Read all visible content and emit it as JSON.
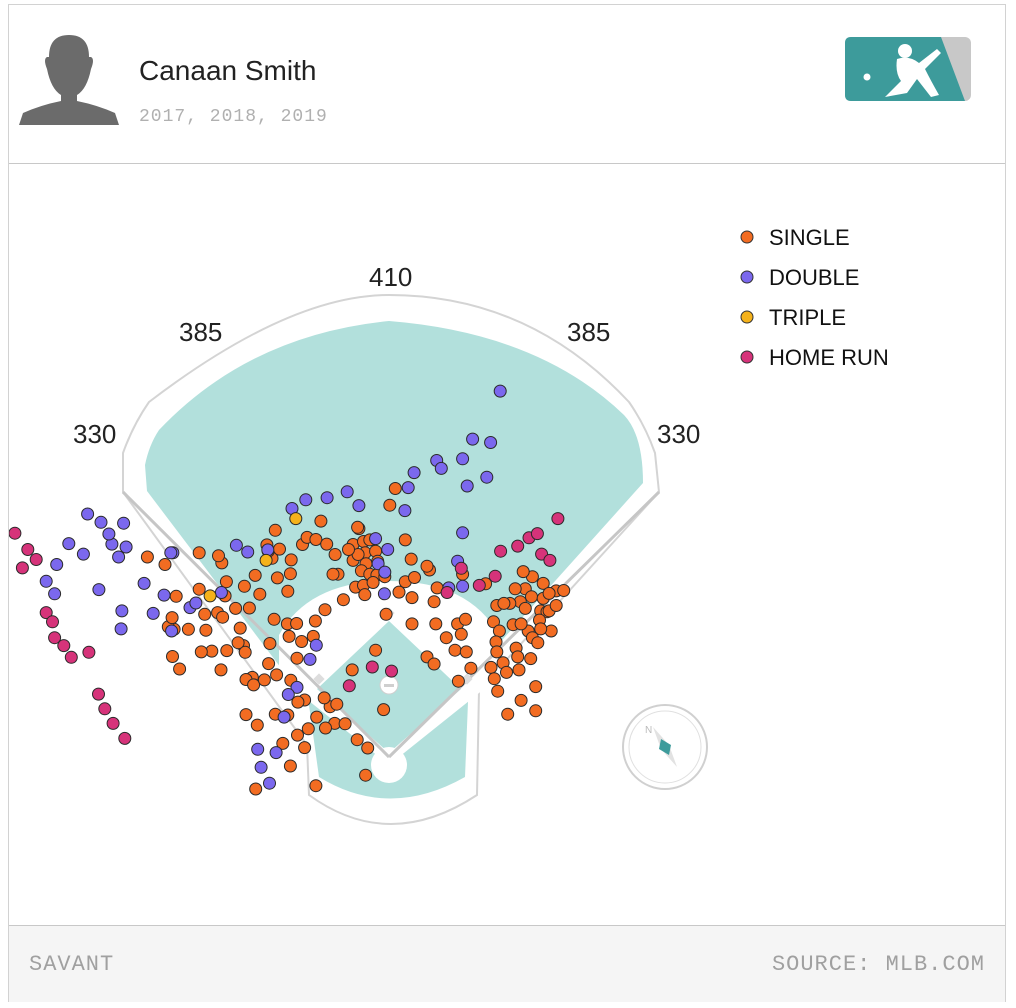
{
  "header": {
    "player_name": "Canaan Smith",
    "seasons": "2017, 2018, 2019",
    "avatar_icon": "player-silhouette-icon",
    "logo_icon": "mlb-logo-icon"
  },
  "footer": {
    "left_text": "SAVANT",
    "right_text": "SOURCE: MLB.COM"
  },
  "colors": {
    "single": "#f26c22",
    "double": "#7b68ee",
    "triple": "#f5b21b",
    "home_run": "#d6337a",
    "grass": "#b2e0dc",
    "logo_teal": "#3d9b9b",
    "logo_grey": "#c8c8c8"
  },
  "chart_data": {
    "type": "scatter",
    "title": "",
    "distance_labels": [
      "330",
      "385",
      "410",
      "385",
      "330"
    ],
    "legend": [
      {
        "key": "single",
        "label": "SINGLE"
      },
      {
        "key": "double",
        "label": "DOUBLE"
      },
      {
        "key": "triple",
        "label": "TRIPLE"
      },
      {
        "key": "home_run",
        "label": "HOME RUN"
      }
    ],
    "legend_position": "top-right",
    "coordinate_system": "hc_x / hc_y hit coordinates (Statcast style, home plate at 125,208)",
    "series": {
      "single": [
        [
          116.4,
          156.2
        ],
        [
          116.4,
          160.0
        ],
        [
          117.8,
          152.4
        ],
        [
          118.9,
          155.5
        ],
        [
          119.3,
          158.2
        ],
        [
          120.4,
          155.1
        ],
        [
          119.5,
          160.8
        ],
        [
          121.8,
          157.8
        ],
        [
          122.3,
          160.2
        ],
        [
          118.4,
          162.5
        ],
        [
          120.4,
          163.3
        ],
        [
          122.1,
          163.5
        ],
        [
          117.0,
          166.4
        ],
        [
          118.9,
          166.0
        ],
        [
          121.2,
          165.3
        ],
        [
          117.6,
          158.6
        ],
        [
          119.2,
          168.2
        ],
        [
          124.0,
          163.9
        ],
        [
          128.9,
          165.1
        ],
        [
          127.4,
          167.6
        ],
        [
          134.7,
          162.3
        ],
        [
          112.1,
          158.6
        ],
        [
          128.9,
          155.1
        ],
        [
          130.3,
          159.7
        ],
        [
          131.1,
          164.1
        ],
        [
          130.5,
          168.9
        ],
        [
          134.1,
          161.4
        ],
        [
          136.5,
          166.6
        ],
        [
          135.8,
          169.9
        ],
        [
          136.2,
          175.2
        ],
        [
          124.3,
          172.9
        ],
        [
          121.8,
          181.5
        ],
        [
          116.2,
          186.2
        ],
        [
          130.5,
          175.2
        ],
        [
          141.4,
          175.2
        ],
        [
          138.7,
          178.5
        ],
        [
          140.8,
          181.5
        ],
        [
          134.1,
          183.1
        ],
        [
          135.8,
          184.8
        ],
        [
          142.6,
          163.3
        ],
        [
          143.3,
          174.1
        ],
        [
          142.3,
          177.7
        ],
        [
          143.5,
          181.9
        ],
        [
          144.6,
          185.8
        ],
        [
          141.6,
          188.9
        ],
        [
          150.8,
          170.8
        ],
        [
          150.0,
          174.7
        ],
        [
          151.4,
          176.9
        ],
        [
          150.6,
          179.5
        ],
        [
          150.8,
          181.9
        ],
        [
          152.3,
          184.5
        ],
        [
          149.4,
          185.6
        ],
        [
          150.2,
          188.3
        ],
        [
          153.1,
          186.8
        ],
        [
          154.7,
          175.4
        ],
        [
          155.4,
          181.0
        ],
        [
          156.4,
          169.9
        ],
        [
          157.6,
          166.8
        ],
        [
          157.6,
          171.5
        ],
        [
          153.9,
          170.3
        ],
        [
          158.3,
          176.9
        ],
        [
          156.6,
          175.2
        ],
        [
          159.3,
          178.5
        ],
        [
          161.3,
          172.1
        ],
        [
          159.1,
          168.7
        ],
        [
          161.9,
          165.5
        ],
        [
          162.8,
          172.3
        ],
        [
          155.8,
          183.1
        ],
        [
          158.9,
          183.5
        ],
        [
          160.6,
          179.7
        ],
        [
          156.1,
          186.2
        ],
        [
          160.1,
          190.2
        ],
        [
          156.6,
          193.5
        ],
        [
          160.1,
          196.0
        ],
        [
          153.4,
          196.8
        ],
        [
          161.9,
          169.1
        ],
        [
          155.2,
          166.8
        ],
        [
          152.5,
          170.3
        ],
        [
          159.3,
          163.9
        ],
        [
          157.1,
          162.7
        ],
        [
          151.0,
          191.3
        ],
        [
          161.0,
          174.3
        ],
        [
          163.3,
          172.1
        ],
        [
          163.8,
          176.9
        ],
        [
          161.3,
          176.4
        ],
        [
          165.0,
          167.3
        ],
        [
          166.8,
          167.2
        ],
        [
          163.3,
          167.9
        ],
        [
          165.0,
          170.8
        ],
        [
          148.1,
          165.6
        ],
        [
          110.9,
          195.0
        ],
        [
          112.5,
          194.4
        ],
        [
          112.0,
          199.0
        ],
        [
          114.5,
          199.1
        ],
        [
          109.8,
          200.1
        ],
        [
          105.7,
          200.3
        ],
        [
          104.8,
          204.8
        ],
        [
          103.1,
          201.8
        ],
        [
          99.6,
          203.8
        ],
        [
          107.7,
          197.5
        ],
        [
          101.4,
          209.2
        ],
        [
          123.7,
          195.7
        ],
        [
          119.4,
          211.4
        ],
        [
          117.4,
          202.9
        ],
        [
          107.5,
          213.9
        ],
        [
          119.9,
          204.9
        ],
        [
          109.5,
          192.9
        ],
        [
          93.1,
          214.7
        ],
        [
          84.0,
          172.5
        ],
        [
          90.2,
          180.4
        ],
        [
          92.3,
          188.0
        ],
        [
          90.8,
          188.5
        ],
        [
          86.2,
          181.6
        ],
        [
          85.2,
          173.6
        ],
        [
          84.8,
          186.2
        ],
        [
          82.6,
          181.7
        ],
        [
          92.6,
          189.8
        ],
        [
          90.6,
          182.0
        ],
        [
          88.9,
          179.7
        ],
        [
          89.4,
          176.2
        ],
        [
          85.0,
          160.6
        ],
        [
          86.1,
          165.1
        ],
        [
          90.4,
          166.2
        ],
        [
          91.6,
          171.4
        ],
        [
          93.0,
          163.6
        ],
        [
          94.1,
          168.1
        ],
        [
          97.0,
          159.5
        ],
        [
          96.1,
          157.8
        ],
        [
          98.3,
          164.2
        ],
        [
          97.8,
          152.8
        ],
        [
          98.8,
          157.3
        ],
        [
          95.8,
          156.3
        ],
        [
          101.6,
          159.9
        ],
        [
          104.3,
          156.2
        ],
        [
          105.4,
          154.5
        ],
        [
          108.7,
          150.6
        ],
        [
          107.5,
          155.0
        ],
        [
          110.1,
          156.1
        ],
        [
          112.8,
          163.3
        ],
        [
          111.6,
          163.3
        ],
        [
          114.1,
          169.4
        ],
        [
          109.7,
          171.8
        ],
        [
          117.5,
          152.1
        ],
        [
          115.3,
          157.4
        ],
        [
          97.5,
          174.1
        ],
        [
          96.5,
          179.9
        ],
        [
          101.1,
          178.2
        ],
        [
          96.2,
          184.7
        ],
        [
          100.7,
          175.2
        ],
        [
          104.1,
          179.4
        ],
        [
          106.9,
          178.2
        ],
        [
          107.4,
          174.5
        ],
        [
          102.9,
          175.1
        ],
        [
          103.0,
          183.4
        ],
        [
          104.8,
          193.4
        ],
        [
          103.2,
          193.9
        ],
        [
          100.8,
          197.0
        ],
        [
          97.8,
          196.8
        ],
        [
          93.5,
          199.4
        ],
        [
          90.8,
          196.9
        ],
        [
          98.1,
          187.4
        ],
        [
          101.5,
          188.7
        ],
        [
          95.2,
          188.6
        ],
        [
          101.4,
          163.2
        ],
        [
          100.8,
          167.4
        ],
        [
          79.6,
          158.2
        ],
        [
          80.9,
          172.9
        ],
        [
          71.4,
          161.0
        ],
        [
          73.6,
          176.5
        ],
        [
          77.0,
          176.5
        ],
        [
          81.2,
          176.7
        ],
        [
          80.1,
          181.9
        ],
        [
          73.2,
          183.0
        ],
        [
          72.2,
          175.9
        ],
        [
          74.9,
          186.0
        ],
        [
          67.2,
          159.2
        ],
        [
          74.1,
          168.6
        ],
        [
          73.1,
          173.7
        ],
        [
          79.6,
          166.9
        ],
        [
          85.8,
          168.5
        ],
        [
          88.3,
          171.5
        ],
        [
          84.2,
          158.9
        ],
        [
          126.5,
          142.8
        ],
        [
          125.2,
          146.8
        ]
      ],
      "double": [
        [
          43.0,
          165.0
        ],
        [
          45.0,
          168.0
        ],
        [
          45.5,
          161.0
        ],
        [
          48.4,
          156.0
        ],
        [
          51.9,
          158.5
        ],
        [
          55.6,
          167.0
        ],
        [
          58.7,
          156.1
        ],
        [
          61.1,
          172.1
        ],
        [
          61.5,
          151.1
        ],
        [
          66.4,
          165.5
        ],
        [
          68.6,
          172.7
        ],
        [
          71.2,
          168.3
        ],
        [
          73.3,
          158.2
        ],
        [
          73.0,
          176.9
        ],
        [
          77.4,
          171.3
        ],
        [
          84.9,
          167.7
        ],
        [
          88.5,
          156.4
        ],
        [
          91.2,
          158.0
        ],
        [
          96.0,
          157.5
        ],
        [
          101.8,
          147.6
        ],
        [
          105.1,
          145.5
        ],
        [
          110.2,
          145.0
        ],
        [
          115.0,
          143.6
        ],
        [
          117.8,
          146.9
        ],
        [
          121.8,
          154.8
        ],
        [
          122.4,
          160.8
        ],
        [
          124.0,
          162.8
        ],
        [
          124.7,
          157.4
        ],
        [
          123.9,
          168.0
        ],
        [
          148.4,
          140.1
        ],
        [
          143.7,
          142.2
        ],
        [
          136.4,
          136.1
        ],
        [
          137.5,
          138.0
        ],
        [
          142.6,
          135.7
        ],
        [
          145.0,
          131.0
        ],
        [
          149.3,
          131.8
        ],
        [
          151.6,
          119.5
        ],
        [
          142.6,
          153.4
        ],
        [
          141.4,
          160.2
        ],
        [
          139.3,
          166.6
        ],
        [
          142.6,
          166.2
        ],
        [
          128.8,
          148.1
        ],
        [
          129.6,
          142.6
        ],
        [
          131.0,
          139.0
        ],
        [
          107.6,
          180.3
        ],
        [
          106.1,
          183.7
        ],
        [
          103.0,
          190.4
        ],
        [
          100.9,
          192.1
        ],
        [
          99.9,
          197.5
        ],
        [
          98.0,
          206.0
        ],
        [
          96.4,
          213.3
        ],
        [
          94.4,
          209.5
        ],
        [
          93.6,
          205.2
        ],
        [
          52.9,
          148.9
        ],
        [
          56.1,
          150.9
        ],
        [
          60.3,
          159.2
        ],
        [
          58.0,
          153.7
        ],
        [
          72.8,
          158.2
        ],
        [
          78.8,
          170.2
        ],
        [
          60.9,
          176.4
        ],
        [
          62.1,
          156.8
        ]
      ],
      "triple": [
        [
          82.2,
          168.5
        ],
        [
          102.7,
          150.0
        ],
        [
          95.6,
          160.0
        ]
      ],
      "home_run": [
        [
          30.1,
          147.6
        ],
        [
          32.0,
          153.9
        ],
        [
          35.5,
          153.5
        ],
        [
          38.6,
          157.4
        ],
        [
          40.6,
          159.8
        ],
        [
          37.3,
          161.8
        ],
        [
          43.0,
          172.5
        ],
        [
          44.5,
          174.7
        ],
        [
          45.0,
          178.5
        ],
        [
          47.2,
          180.4
        ],
        [
          49.0,
          183.2
        ],
        [
          53.2,
          182.0
        ],
        [
          55.5,
          192.0
        ],
        [
          57.0,
          195.5
        ],
        [
          59.0,
          199.0
        ],
        [
          61.8,
          202.6
        ],
        [
          115.5,
          190.0
        ],
        [
          121.0,
          185.5
        ],
        [
          125.6,
          186.5
        ],
        [
          138.9,
          167.7
        ],
        [
          142.3,
          161.9
        ],
        [
          146.6,
          166.0
        ],
        [
          150.4,
          163.8
        ],
        [
          151.7,
          157.8
        ],
        [
          155.8,
          156.6
        ],
        [
          158.5,
          154.6
        ],
        [
          161.5,
          158.5
        ],
        [
          163.5,
          160.0
        ],
        [
          160.5,
          153.6
        ],
        [
          165.4,
          150.0
        ]
      ]
    }
  }
}
